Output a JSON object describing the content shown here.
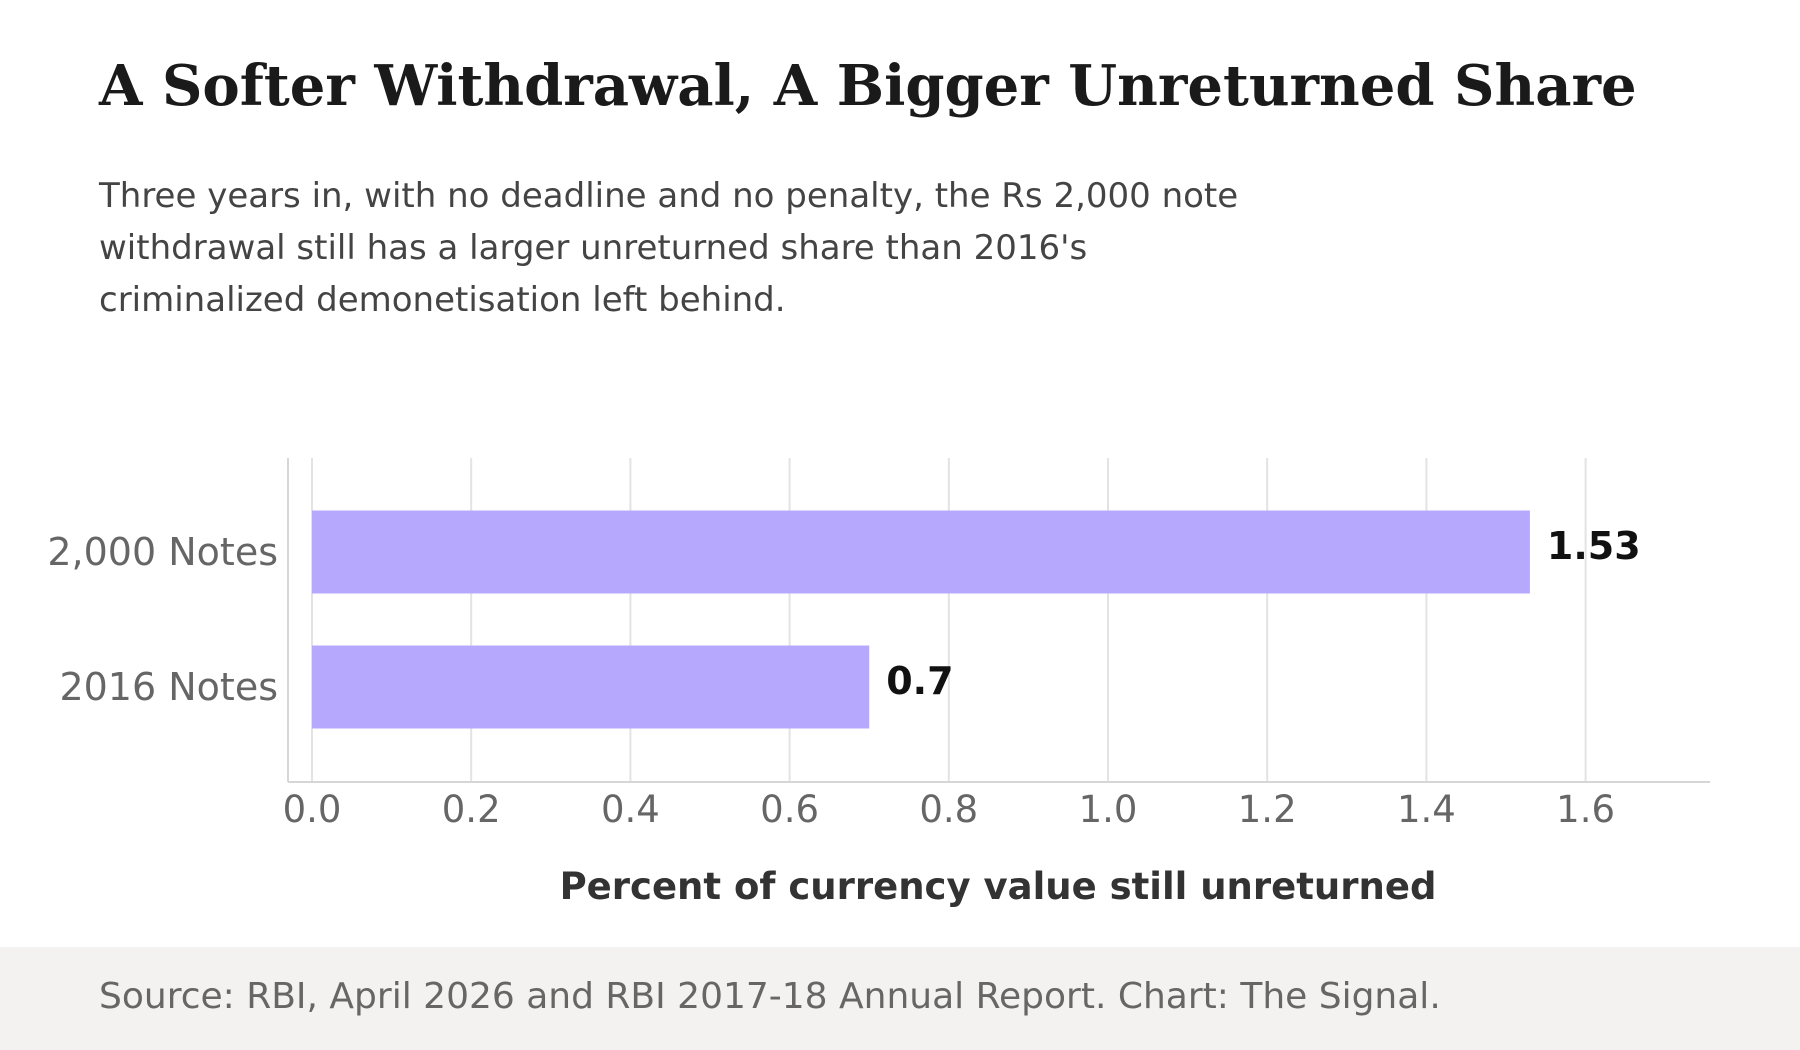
{
  "header": {
    "title": "A Softer Withdrawal, A Bigger Unreturned Share",
    "subtitle_lines": [
      "Three years in, with no deadline and no penalty, the Rs 2,000 note",
      "withdrawal still has a larger unreturned share than 2016's",
      "criminalized demonetisation left behind."
    ]
  },
  "footer": {
    "source": "Source: RBI, April 2026 and RBI 2017-18 Annual Report. Chart: The Signal."
  },
  "colors": {
    "bar": "#b6a8fd",
    "grid": "#e3e3e3",
    "axis": "#d6d6d6",
    "tick_label": "#666666",
    "value_label": "#111111",
    "axis_title": "#333333"
  },
  "chart_data": {
    "type": "bar",
    "orientation": "horizontal",
    "categories": [
      "2,000 Notes",
      "2016 Notes"
    ],
    "values": [
      1.53,
      0.7
    ],
    "value_labels": [
      "1.53",
      "0.7"
    ],
    "title": "A Softer Withdrawal, A Bigger Unreturned Share",
    "xlabel": "Percent of currency value still unreturned",
    "ylabel": "",
    "xlim": [
      0,
      1.6
    ],
    "xticks": [
      0.0,
      0.2,
      0.4,
      0.6,
      0.8,
      1.0,
      1.2,
      1.4,
      1.6
    ],
    "xtick_labels": [
      "0.0",
      "0.2",
      "0.4",
      "0.6",
      "0.8",
      "1.0",
      "1.2",
      "1.4",
      "1.6"
    ],
    "grid": "vertical",
    "legend": "none"
  }
}
